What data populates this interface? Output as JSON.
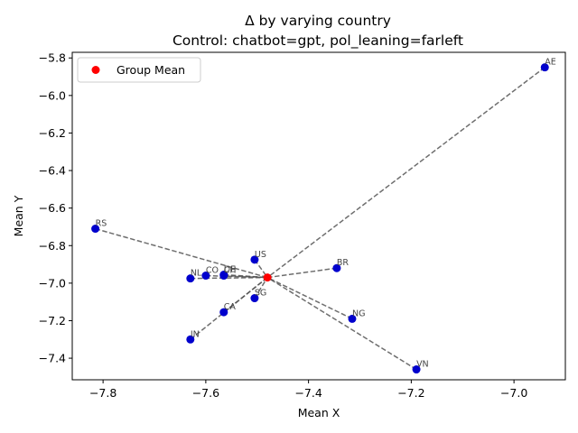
{
  "chart_data": {
    "type": "scatter",
    "title": "Δ by varying country",
    "subtitle": "Control: chatbot=gpt, pol_leaning=farleft",
    "xlabel": "Mean X",
    "ylabel": "Mean Y",
    "xlim": [
      -7.86,
      -6.9
    ],
    "ylim": [
      -7.515,
      -5.77
    ],
    "xticks": [
      -7.8,
      -7.6,
      -7.4,
      -7.2,
      -7.0
    ],
    "yticks": [
      -5.8,
      -6.0,
      -6.2,
      -6.4,
      -6.6,
      -6.8,
      -7.0,
      -7.2,
      -7.4
    ],
    "legend": {
      "label": "Group Mean",
      "position": "top-left"
    },
    "group_mean": {
      "x": -7.48,
      "y": -6.97
    },
    "points": [
      {
        "label": "AE",
        "x": -6.94,
        "y": -5.85
      },
      {
        "label": "RS",
        "x": -7.815,
        "y": -6.71
      },
      {
        "label": "US",
        "x": -7.505,
        "y": -6.875
      },
      {
        "label": "BR",
        "x": -7.345,
        "y": -6.92
      },
      {
        "label": "CO",
        "x": -7.6,
        "y": -6.96
      },
      {
        "label": "CH",
        "x": -7.565,
        "y": -6.96
      },
      {
        "label": "DE",
        "x": -7.565,
        "y": -6.955
      },
      {
        "label": "NL",
        "x": -7.63,
        "y": -6.975
      },
      {
        "label": "SG",
        "x": -7.505,
        "y": -7.08
      },
      {
        "label": "CA",
        "x": -7.565,
        "y": -7.155
      },
      {
        "label": "NG",
        "x": -7.315,
        "y": -7.19
      },
      {
        "label": "IN",
        "x": -7.63,
        "y": -7.3
      },
      {
        "label": "VN",
        "x": -7.19,
        "y": -7.46
      }
    ],
    "colors": {
      "points": "#0000cd",
      "mean": "#ff0000",
      "lines": "#555555"
    }
  }
}
